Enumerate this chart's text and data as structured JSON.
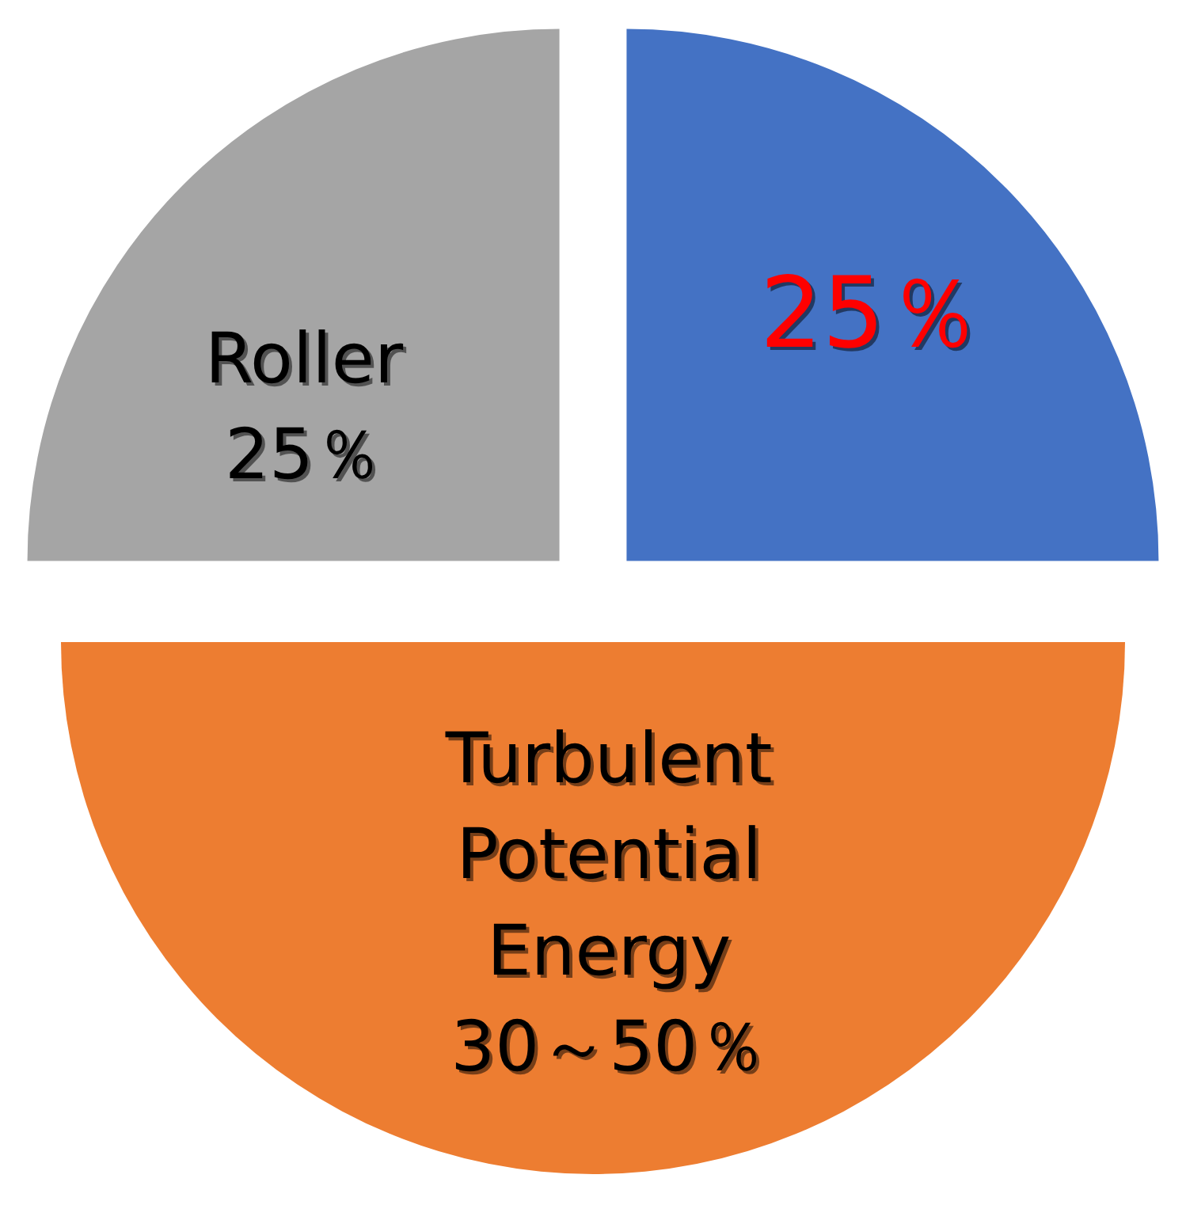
{
  "chart_data": {
    "type": "pie",
    "categories": [
      null,
      "Turbulent Potential Energy",
      "Roller"
    ],
    "values": [
      25,
      50,
      25
    ],
    "colors": [
      "#4472c4",
      "#ed7d31",
      "#a5a5a5"
    ],
    "value_labels": [
      "25％",
      "30～50％",
      "25％"
    ]
  }
}
